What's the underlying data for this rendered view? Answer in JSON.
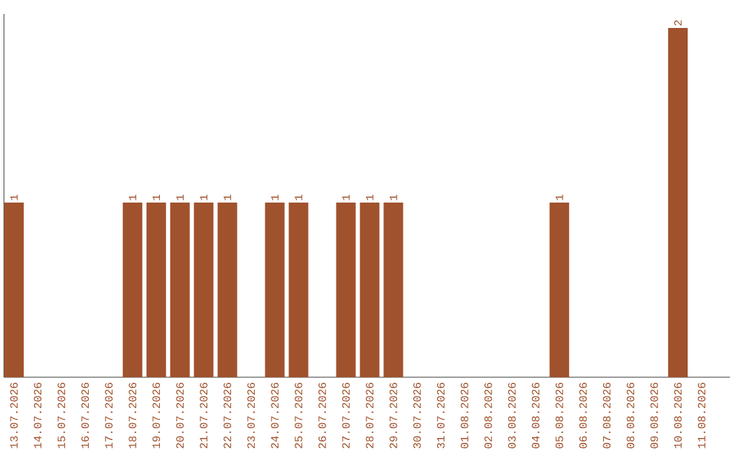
{
  "chart_data": {
    "type": "bar",
    "categories": [
      "13.07.2026",
      "14.07.2026",
      "15.07.2026",
      "16.07.2026",
      "17.07.2026",
      "18.07.2026",
      "19.07.2026",
      "20.07.2026",
      "21.07.2026",
      "22.07.2026",
      "23.07.2026",
      "24.07.2026",
      "25.07.2026",
      "26.07.2026",
      "27.07.2026",
      "28.07.2026",
      "29.07.2026",
      "30.07.2026",
      "31.07.2026",
      "01.08.2026",
      "02.08.2026",
      "03.08.2026",
      "04.08.2026",
      "05.08.2026",
      "06.08.2026",
      "07.08.2026",
      "08.08.2026",
      "09.08.2026",
      "10.08.2026",
      "11.08.2026"
    ],
    "values": [
      1,
      0,
      0,
      0,
      0,
      1,
      1,
      1,
      1,
      1,
      0,
      1,
      1,
      0,
      1,
      1,
      1,
      0,
      0,
      0,
      0,
      0,
      0,
      1,
      0,
      0,
      0,
      0,
      2,
      0
    ],
    "value_labels": [
      "1",
      null,
      null,
      null,
      null,
      "1",
      "1",
      "1",
      "1",
      "1",
      null,
      "1",
      "1",
      null,
      "1",
      "1",
      "1",
      null,
      null,
      null,
      null,
      null,
      null,
      "1",
      null,
      null,
      null,
      null,
      "2",
      null
    ],
    "color": "#a0522d",
    "tick_labels": "x"
  }
}
